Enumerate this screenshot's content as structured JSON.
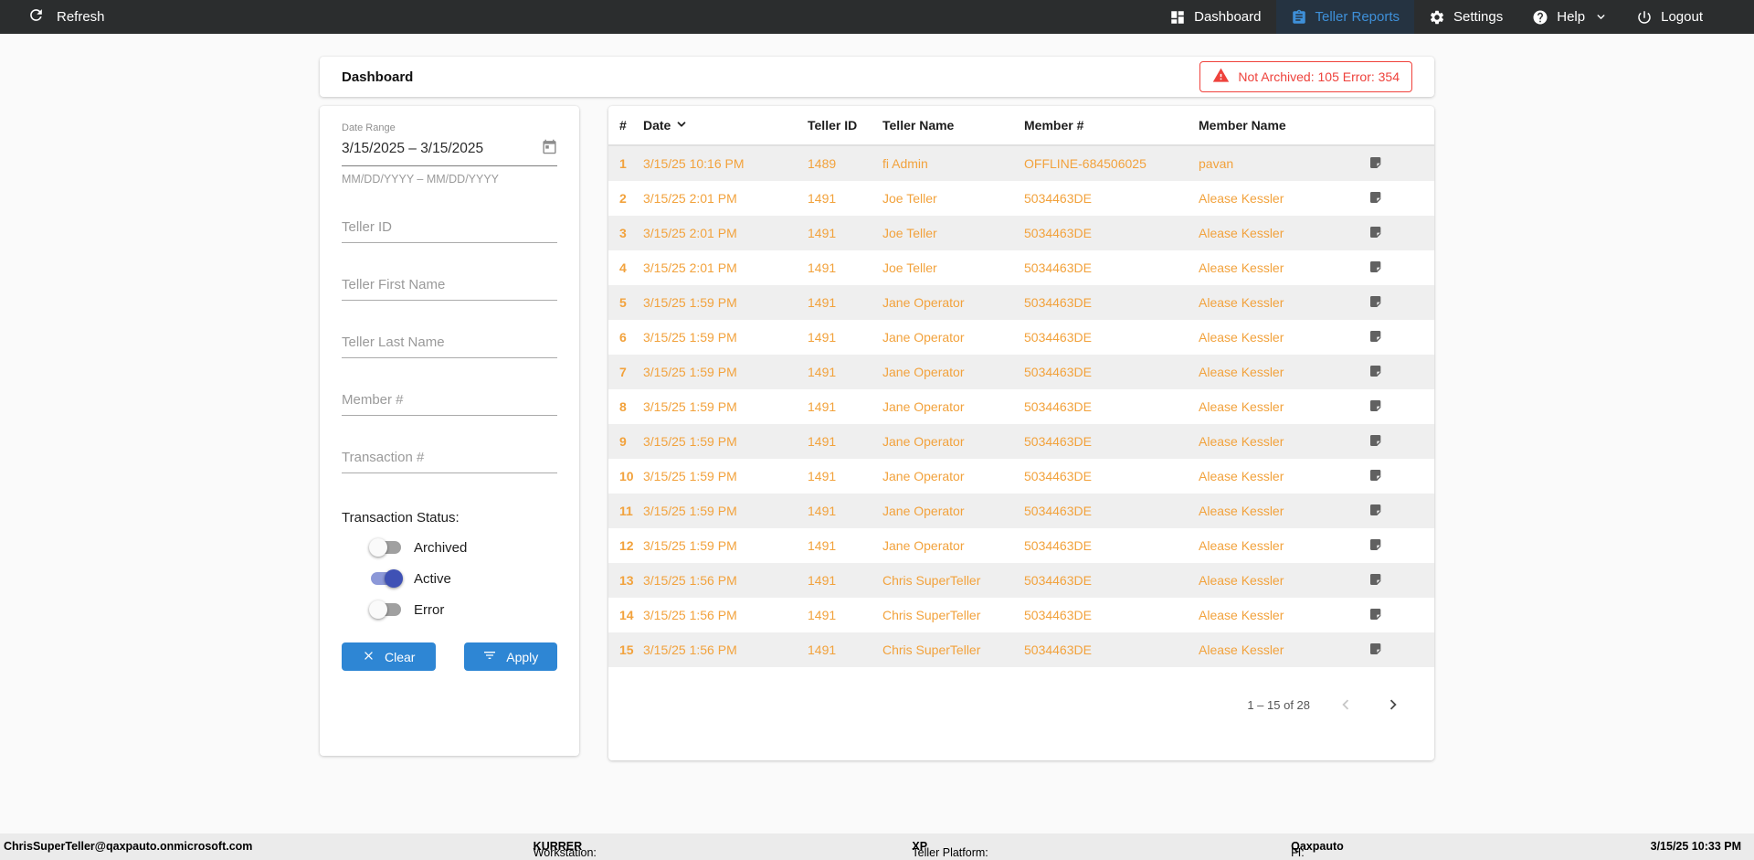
{
  "navbar": {
    "refresh_label": "Refresh",
    "items": [
      {
        "label": "Dashboard",
        "icon": "dashboard-icon",
        "active": false,
        "chevron": false
      },
      {
        "label": "Teller Reports",
        "icon": "clipboard-icon",
        "active": true,
        "chevron": false
      },
      {
        "label": "Settings",
        "icon": "gear-icon",
        "active": false,
        "chevron": false
      },
      {
        "label": "Help",
        "icon": "help-icon",
        "active": false,
        "chevron": true
      },
      {
        "label": "Logout",
        "icon": "power-icon",
        "active": false,
        "chevron": false
      }
    ]
  },
  "header": {
    "title": "Dashboard",
    "alert_text": "Not Archived: 105  Error: 354"
  },
  "filters": {
    "date_range": {
      "label": "Date Range",
      "value": "3/15/2025 – 3/15/2025",
      "helper": "MM/DD/YYYY – MM/DD/YYYY"
    },
    "inputs": [
      {
        "placeholder": "Teller ID"
      },
      {
        "placeholder": "Teller First Name"
      },
      {
        "placeholder": "Teller Last Name"
      },
      {
        "placeholder": "Member #"
      },
      {
        "placeholder": "Transaction #"
      }
    ],
    "status": {
      "label": "Transaction Status:",
      "toggles": [
        {
          "label": "Archived",
          "on": false
        },
        {
          "label": "Active",
          "on": true
        },
        {
          "label": "Error",
          "on": false
        }
      ]
    },
    "clear_label": "Clear",
    "apply_label": "Apply"
  },
  "table": {
    "columns": [
      "#",
      "Date",
      "Teller ID",
      "Teller Name",
      "Member #",
      "Member Name"
    ],
    "sort_column": "Date",
    "rows": [
      [
        "1",
        "3/15/25 10:16 PM",
        "1489",
        "fi Admin",
        "OFFLINE-684506025",
        "pavan"
      ],
      [
        "2",
        "3/15/25 2:01 PM",
        "1491",
        "Joe Teller",
        "5034463DE",
        "Alease Kessler"
      ],
      [
        "3",
        "3/15/25 2:01 PM",
        "1491",
        "Joe Teller",
        "5034463DE",
        "Alease Kessler"
      ],
      [
        "4",
        "3/15/25 2:01 PM",
        "1491",
        "Joe Teller",
        "5034463DE",
        "Alease Kessler"
      ],
      [
        "5",
        "3/15/25 1:59 PM",
        "1491",
        "Jane Operator",
        "5034463DE",
        "Alease Kessler"
      ],
      [
        "6",
        "3/15/25 1:59 PM",
        "1491",
        "Jane Operator",
        "5034463DE",
        "Alease Kessler"
      ],
      [
        "7",
        "3/15/25 1:59 PM",
        "1491",
        "Jane Operator",
        "5034463DE",
        "Alease Kessler"
      ],
      [
        "8",
        "3/15/25 1:59 PM",
        "1491",
        "Jane Operator",
        "5034463DE",
        "Alease Kessler"
      ],
      [
        "9",
        "3/15/25 1:59 PM",
        "1491",
        "Jane Operator",
        "5034463DE",
        "Alease Kessler"
      ],
      [
        "10",
        "3/15/25 1:59 PM",
        "1491",
        "Jane Operator",
        "5034463DE",
        "Alease Kessler"
      ],
      [
        "11",
        "3/15/25 1:59 PM",
        "1491",
        "Jane Operator",
        "5034463DE",
        "Alease Kessler"
      ],
      [
        "12",
        "3/15/25 1:59 PM",
        "1491",
        "Jane Operator",
        "5034463DE",
        "Alease Kessler"
      ],
      [
        "13",
        "3/15/25 1:56 PM",
        "1491",
        "Chris SuperTeller",
        "5034463DE",
        "Alease Kessler"
      ],
      [
        "14",
        "3/15/25 1:56 PM",
        "1491",
        "Chris SuperTeller",
        "5034463DE",
        "Alease Kessler"
      ],
      [
        "15",
        "3/15/25 1:56 PM",
        "1491",
        "Chris SuperTeller",
        "5034463DE",
        "Alease Kessler"
      ]
    ],
    "row_note_icon": "note-icon",
    "pagination_range": "1 – 15 of 28"
  },
  "footer": {
    "user": "ChrisSuperTeller@qaxpauto.onmicrosoft.com",
    "workstation_label": "Workstation: ",
    "workstation": "KURRER",
    "platform_label": "Teller Platform: ",
    "platform": "XP",
    "fi_label": "FI: ",
    "fi": "Qaxpauto",
    "timestamp": "3/15/25 10:33 PM"
  },
  "colors": {
    "navbar_bg": "#2b2d2e",
    "nav_active_blue": "#3e90d9",
    "accent_blue": "#2e86d4",
    "row_orange": "#f2a23c",
    "alert_red": "#ee423c",
    "toggle_on_indigo": "#3f51b5",
    "stripe_gray": "#efefef"
  }
}
